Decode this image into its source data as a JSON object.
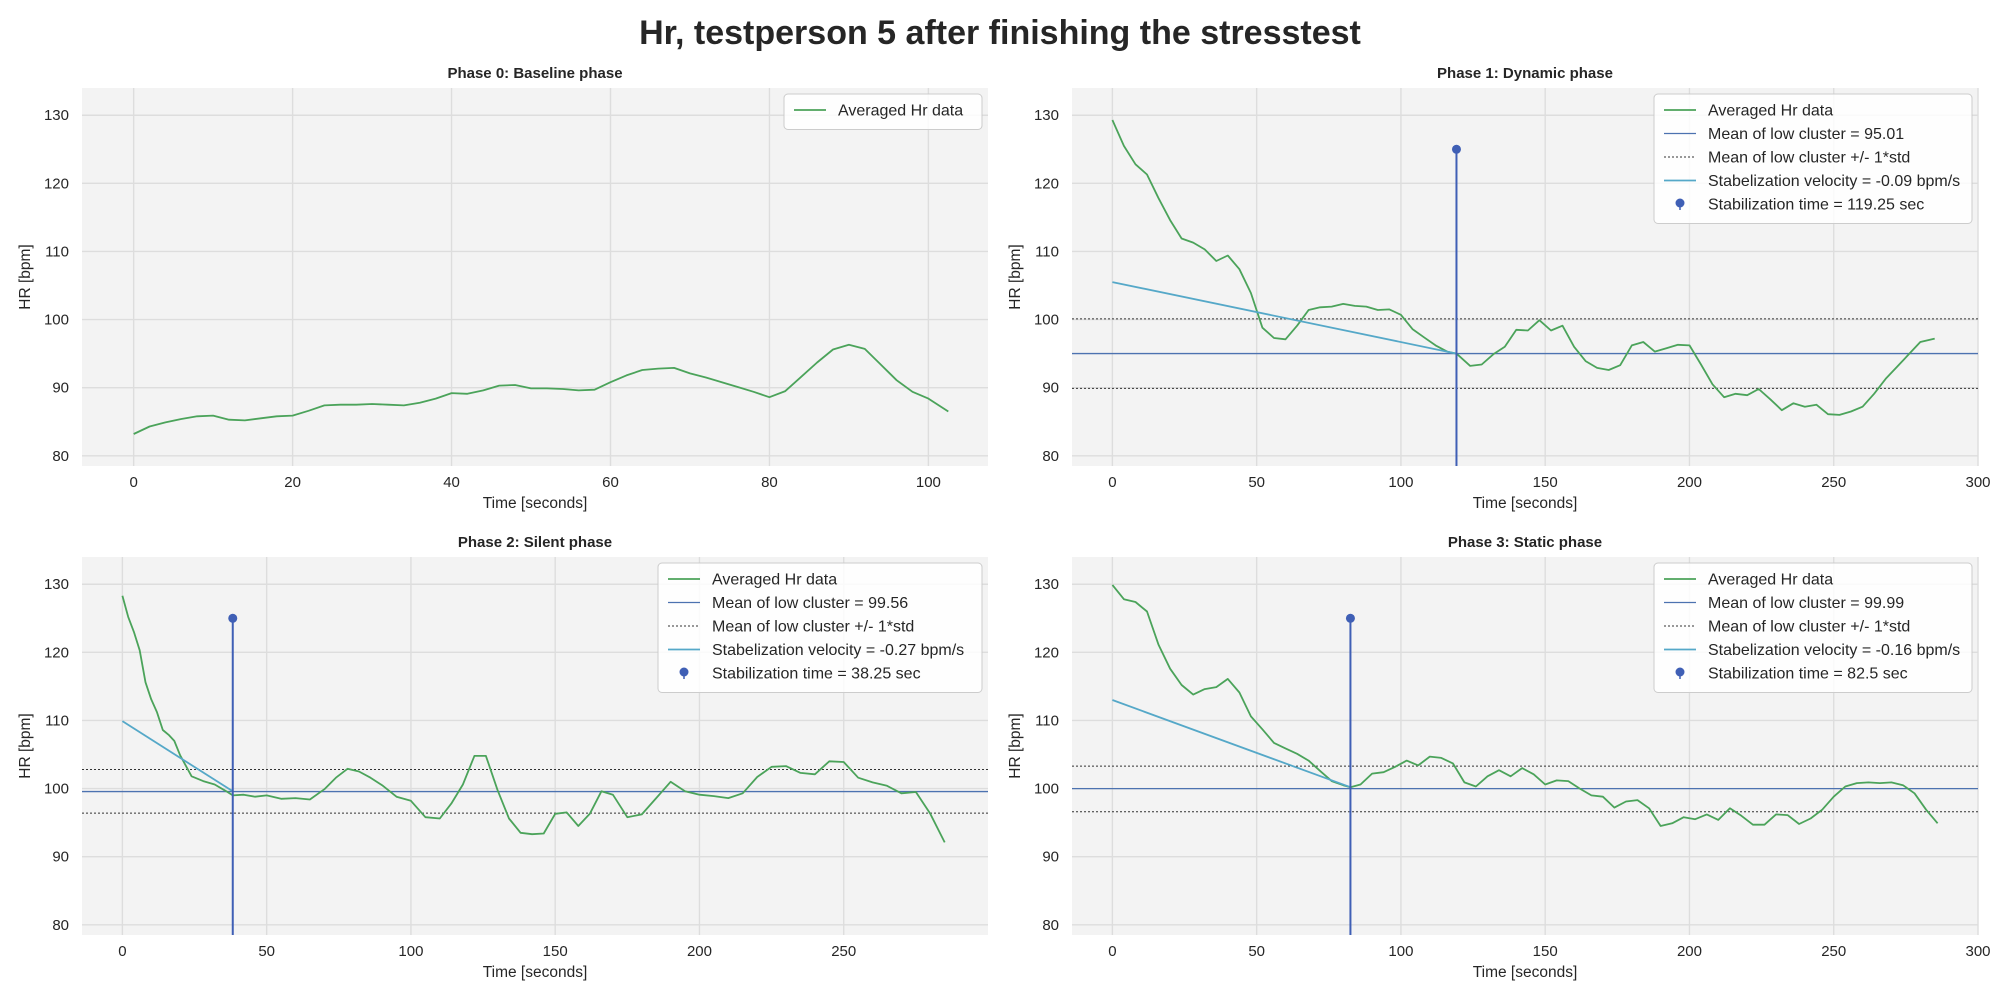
{
  "figure": {
    "title": "Hr, testperson 5 after finishing the stresstest"
  },
  "colors": {
    "hr": "#4ba35a",
    "mean": "#4c72b0",
    "vel": "#55a8c8",
    "stem": "#3f5fb5",
    "dotted": "#333333",
    "plotbg": "#f3f3f3",
    "grid": "#dddddd"
  },
  "chart_data": [
    {
      "type": "line",
      "title": "Phase 0: Baseline phase",
      "xlabel": "Time [seconds]",
      "ylabel": "HR [bpm]",
      "xlim": [
        -6.5,
        107.5
      ],
      "ylim": [
        78.5,
        134
      ],
      "xticks": [
        0,
        20,
        40,
        60,
        80,
        100
      ],
      "yticks": [
        80,
        90,
        100,
        110,
        120,
        130
      ],
      "grid": true,
      "legend_position": "top-right",
      "series": [
        {
          "name": "Averaged Hr data",
          "role": "hr",
          "x": [
            0,
            2,
            4,
            6,
            8,
            10,
            12,
            14,
            16,
            18,
            20,
            22,
            24,
            26,
            28,
            30,
            32,
            34,
            36,
            38,
            40,
            42,
            44,
            46,
            48,
            50,
            52,
            54,
            56,
            58,
            60,
            62,
            64,
            66,
            68,
            70,
            72,
            74,
            76,
            78,
            80,
            82,
            84,
            86,
            88,
            90,
            92,
            94,
            96,
            98,
            100,
            102.5
          ],
          "y": [
            83.2,
            84.3,
            84.9,
            85.4,
            85.8,
            85.9,
            85.3,
            85.2,
            85.5,
            85.8,
            85.9,
            86.6,
            87.4,
            87.5,
            87.5,
            87.6,
            87.5,
            87.4,
            87.8,
            88.4,
            89.2,
            89.1,
            89.6,
            90.3,
            90.4,
            89.9,
            89.9,
            89.8,
            89.6,
            89.7,
            90.8,
            91.8,
            92.6,
            92.8,
            92.9,
            92.1,
            91.5,
            90.8,
            90.1,
            89.4,
            88.6,
            89.5,
            91.6,
            93.7,
            95.6,
            96.3,
            95.7,
            93.4,
            91.1,
            89.4,
            88.4,
            86.5
          ]
        }
      ]
    },
    {
      "type": "line",
      "title": "Phase 1: Dynamic phase",
      "xlabel": "Time [seconds]",
      "ylabel": "HR [bpm]",
      "xlim": [
        -14,
        300
      ],
      "ylim": [
        78.5,
        134
      ],
      "xticks": [
        0,
        50,
        100,
        150,
        200,
        250,
        300
      ],
      "yticks": [
        80,
        90,
        100,
        110,
        120,
        130
      ],
      "grid": true,
      "legend_position": "top-right",
      "series": [
        {
          "name": "Averaged Hr data",
          "role": "hr",
          "x": [
            0,
            4,
            8,
            12,
            16,
            20,
            24,
            28,
            32,
            36,
            40,
            44,
            48,
            52,
            56,
            60,
            64,
            68,
            72,
            76,
            80,
            84,
            88,
            92,
            96,
            100,
            104,
            108,
            112,
            116,
            119.25,
            124,
            128,
            132,
            136,
            140,
            144,
            148,
            152,
            156,
            160,
            164,
            168,
            172,
            176,
            180,
            184,
            188,
            192,
            196,
            200,
            204,
            208,
            212,
            216,
            220,
            224,
            228,
            232,
            236,
            240,
            244,
            248,
            252,
            256,
            260,
            264,
            268,
            272,
            276,
            280,
            285
          ],
          "y": [
            129.3,
            125.5,
            122.8,
            121.3,
            117.8,
            114.6,
            111.9,
            111.3,
            110.3,
            108.6,
            109.4,
            107.4,
            103.9,
            98.8,
            97.3,
            97.1,
            99.1,
            101.4,
            101.8,
            101.9,
            102.3,
            102.0,
            101.9,
            101.4,
            101.5,
            100.7,
            98.6,
            97.4,
            96.2,
            95.3,
            95.0,
            93.2,
            93.4,
            94.9,
            96.0,
            98.5,
            98.4,
            99.9,
            98.4,
            99.1,
            96.0,
            93.9,
            92.9,
            92.6,
            93.3,
            96.2,
            96.7,
            95.3,
            95.8,
            96.3,
            96.2,
            93.4,
            90.5,
            88.6,
            89.1,
            88.9,
            89.8,
            88.3,
            86.7,
            87.7,
            87.2,
            87.5,
            86.1,
            86.0,
            86.5,
            87.2,
            89.1,
            91.3,
            93.1,
            94.9,
            96.7,
            97.2
          ]
        },
        {
          "name": "Mean of low cluster = 95.01",
          "role": "mean",
          "value": 95.01
        },
        {
          "name": "Mean of low cluster +/- 1*std",
          "role": "std",
          "values": [
            89.9,
            100.1
          ]
        },
        {
          "name": "Stabelization velocity = -0.09 bpm/s",
          "role": "velocity",
          "x": [
            0,
            119.25
          ],
          "y": [
            105.5,
            95.0
          ]
        },
        {
          "name": "Stabilization time = 119.25 sec",
          "role": "stem",
          "x": 119.25,
          "y": 125
        }
      ]
    },
    {
      "type": "line",
      "title": "Phase 2: Silent phase",
      "xlabel": "Time [seconds]",
      "ylabel": "HR [bpm]",
      "xlim": [
        -14,
        300
      ],
      "ylim": [
        78.5,
        134
      ],
      "xticks": [
        0,
        50,
        100,
        150,
        200,
        250
      ],
      "yticks": [
        80,
        90,
        100,
        110,
        120,
        130
      ],
      "grid": true,
      "legend_position": "top-right",
      "series": [
        {
          "name": "Averaged Hr data",
          "role": "hr",
          "x": [
            0,
            2,
            4,
            6,
            8,
            10,
            12,
            14,
            16,
            18,
            20,
            24,
            28,
            32,
            36,
            38.25,
            42,
            46,
            50,
            55,
            60,
            65,
            70,
            74,
            78,
            82,
            86,
            90,
            95,
            100,
            105,
            110,
            114,
            118,
            122,
            126,
            130,
            134,
            138,
            142,
            146,
            150,
            154,
            158,
            162,
            166,
            170,
            175,
            180,
            185,
            190,
            195,
            200,
            205,
            210,
            215,
            220,
            225,
            230,
            235,
            240,
            245,
            250,
            255,
            260,
            265,
            270,
            275,
            280,
            285
          ],
          "y": [
            128.3,
            125.2,
            123.0,
            120.3,
            115.6,
            113.1,
            111.2,
            108.6,
            107.9,
            107.0,
            104.9,
            101.8,
            101.1,
            100.6,
            99.6,
            99.0,
            99.1,
            98.8,
            99.0,
            98.5,
            98.6,
            98.4,
            99.9,
            101.6,
            102.9,
            102.5,
            101.6,
            100.5,
            98.8,
            98.2,
            95.8,
            95.6,
            97.8,
            100.6,
            104.8,
            104.8,
            99.8,
            95.6,
            93.5,
            93.3,
            93.4,
            96.3,
            96.5,
            94.5,
            96.3,
            99.6,
            99.1,
            95.8,
            96.2,
            98.6,
            101.0,
            99.6,
            99.1,
            98.9,
            98.6,
            99.3,
            101.7,
            103.2,
            103.3,
            102.3,
            102.1,
            104.0,
            103.9,
            101.6,
            100.9,
            100.4,
            99.3,
            99.5,
            96.3,
            92.1
          ]
        },
        {
          "name": "Mean of low cluster = 99.56",
          "role": "mean",
          "value": 99.56
        },
        {
          "name": "Mean of low cluster +/- 1*std",
          "role": "std",
          "values": [
            96.4,
            102.8
          ]
        },
        {
          "name": "Stabelization velocity = -0.27 bpm/s",
          "role": "velocity",
          "x": [
            0,
            38.25
          ],
          "y": [
            109.9,
            99.6
          ]
        },
        {
          "name": "Stabilization time = 38.25 sec",
          "role": "stem",
          "x": 38.25,
          "y": 125
        }
      ]
    },
    {
      "type": "line",
      "title": "Phase 3: Static phase",
      "xlabel": "Time [seconds]",
      "ylabel": "HR [bpm]",
      "xlim": [
        -14,
        300
      ],
      "ylim": [
        78.5,
        134
      ],
      "xticks": [
        0,
        50,
        100,
        150,
        200,
        250,
        300
      ],
      "yticks": [
        80,
        90,
        100,
        110,
        120,
        130
      ],
      "grid": true,
      "legend_position": "top-right",
      "series": [
        {
          "name": "Averaged Hr data",
          "role": "hr",
          "x": [
            0,
            4,
            8,
            12,
            16,
            20,
            24,
            28,
            32,
            36,
            40,
            44,
            48,
            52,
            56,
            60,
            64,
            68,
            72,
            76,
            80,
            82.5,
            86,
            90,
            94,
            98,
            102,
            106,
            110,
            114,
            118,
            122,
            126,
            130,
            134,
            138,
            142,
            146,
            150,
            154,
            158,
            162,
            166,
            170,
            174,
            178,
            182,
            186,
            190,
            194,
            198,
            202,
            206,
            210,
            214,
            218,
            222,
            226,
            230,
            234,
            238,
            242,
            246,
            250,
            254,
            258,
            262,
            266,
            270,
            274,
            278,
            282,
            286
          ],
          "y": [
            129.9,
            127.8,
            127.4,
            126.0,
            121.1,
            117.6,
            115.2,
            113.8,
            114.6,
            114.9,
            116.1,
            114.1,
            110.6,
            108.7,
            106.7,
            105.9,
            105.1,
            104.1,
            102.6,
            101.1,
            100.5,
            100.2,
            100.6,
            102.2,
            102.4,
            103.2,
            104.1,
            103.4,
            104.7,
            104.5,
            103.7,
            100.9,
            100.3,
            101.8,
            102.7,
            101.8,
            103.0,
            102.1,
            100.6,
            101.2,
            101.1,
            100.0,
            99.0,
            98.8,
            97.2,
            98.1,
            98.3,
            97.1,
            94.5,
            94.9,
            95.8,
            95.5,
            96.2,
            95.4,
            97.1,
            96.0,
            94.7,
            94.7,
            96.2,
            96.1,
            94.8,
            95.6,
            96.9,
            98.8,
            100.3,
            100.8,
            100.9,
            100.8,
            100.9,
            100.5,
            99.3,
            96.9,
            94.9
          ]
        },
        {
          "name": "Mean of low cluster = 99.99",
          "role": "mean",
          "value": 99.99
        },
        {
          "name": "Mean of low cluster +/- 1*std",
          "role": "std",
          "values": [
            96.6,
            103.3
          ]
        },
        {
          "name": "Stabelization velocity = -0.16 bpm/s",
          "role": "velocity",
          "x": [
            0,
            82.5
          ],
          "y": [
            113.0,
            100.2
          ]
        },
        {
          "name": "Stabilization time = 82.5 sec",
          "role": "stem",
          "x": 82.5,
          "y": 125
        }
      ]
    }
  ]
}
